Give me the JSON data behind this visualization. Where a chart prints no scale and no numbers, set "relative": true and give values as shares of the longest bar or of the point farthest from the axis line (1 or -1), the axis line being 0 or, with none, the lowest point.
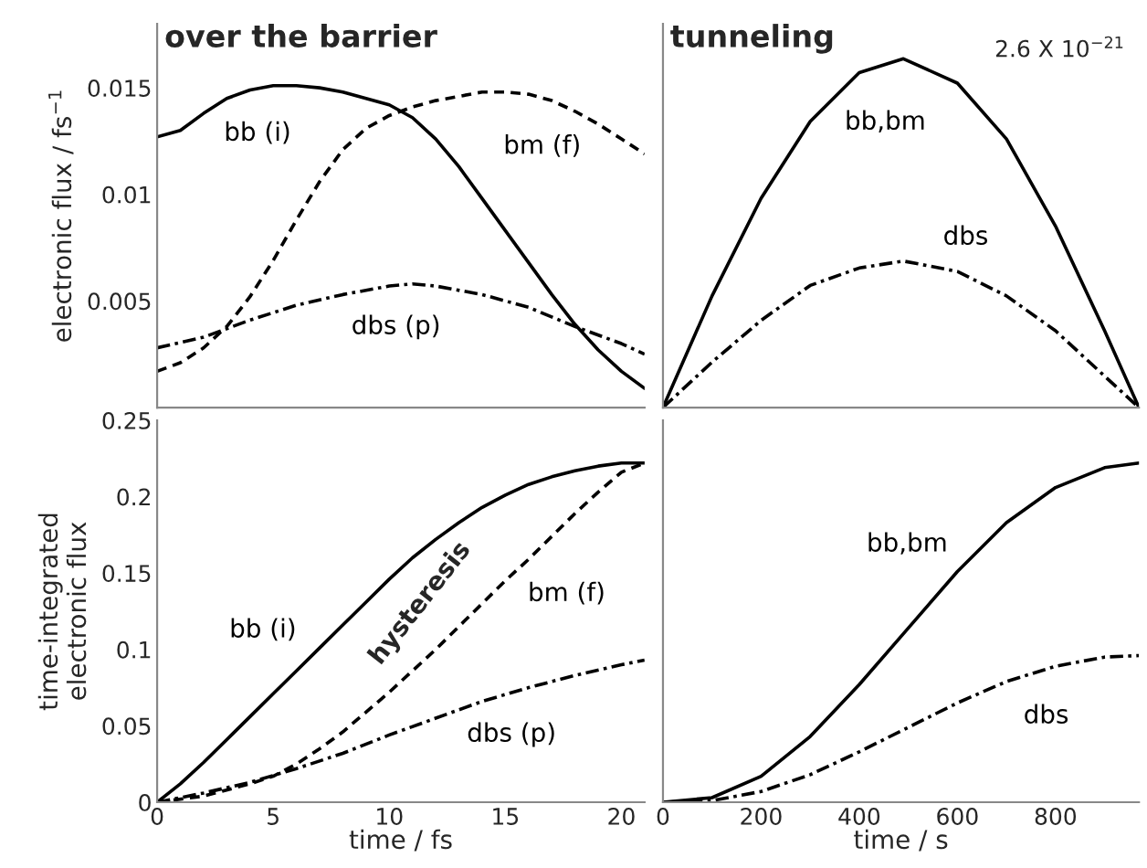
{
  "chart_data": [
    {
      "type": "line",
      "title": "over the barrier",
      "ylabel": "electronic flux / fs$^{−1}$",
      "xlim": [
        0,
        21
      ],
      "xticks": [
        5,
        10,
        15,
        20
      ],
      "ylim": [
        0,
        0.018
      ],
      "yticks": [
        0.005,
        0.01,
        0.015
      ],
      "tick_labels": "y",
      "grid": false,
      "legend": false,
      "series": [
        {
          "name": "bb (i)",
          "color": "#000000",
          "line_style": "solid",
          "x": [
            0,
            1,
            2,
            3,
            4,
            5,
            6,
            7,
            8,
            9,
            10,
            11,
            12,
            13,
            14,
            15,
            16,
            17,
            18,
            19,
            20,
            21
          ],
          "values": [
            0.0127,
            0.013,
            0.0138,
            0.0145,
            0.0149,
            0.0151,
            0.0151,
            0.015,
            0.0148,
            0.0145,
            0.0142,
            0.0136,
            0.0126,
            0.0113,
            0.0098,
            0.0083,
            0.0068,
            0.0053,
            0.0039,
            0.0027,
            0.0017,
            0.0009
          ]
        },
        {
          "name": "bm (f)",
          "color": "#000000",
          "line_style": "dashed",
          "x": [
            0,
            1,
            2,
            3,
            4,
            5,
            6,
            7,
            8,
            9,
            10,
            11,
            12,
            13,
            14,
            15,
            16,
            17,
            18,
            19,
            20,
            21
          ],
          "values": [
            0.0017,
            0.0021,
            0.0028,
            0.0038,
            0.0052,
            0.0069,
            0.0088,
            0.0106,
            0.0121,
            0.0131,
            0.0137,
            0.0141,
            0.0144,
            0.0146,
            0.0148,
            0.0148,
            0.0147,
            0.0144,
            0.0139,
            0.0133,
            0.0126,
            0.0119
          ]
        },
        {
          "name": "dbs (p)",
          "color": "#000000",
          "line_style": "dashdot",
          "x": [
            0,
            2,
            4,
            6,
            8,
            10,
            11,
            12,
            14,
            16,
            18,
            20,
            21
          ],
          "values": [
            0.0028,
            0.0033,
            0.0041,
            0.0048,
            0.0053,
            0.0057,
            0.0058,
            0.0057,
            0.0053,
            0.0047,
            0.0038,
            0.003,
            0.0025
          ]
        }
      ]
    },
    {
      "type": "line",
      "title": "tunneling",
      "relative": true,
      "xlim": [
        0,
        970
      ],
      "xticks": [
        200,
        400,
        600,
        800
      ],
      "tick_labels": false,
      "grid": false,
      "legend": false,
      "series": [
        {
          "name": "bb,bm",
          "color": "#000000",
          "line_style": "solid",
          "x": [
            0,
            100,
            200,
            300,
            400,
            490,
            600,
            700,
            800,
            900,
            970
          ],
          "values": [
            0,
            0.32,
            0.6,
            0.82,
            0.96,
            1,
            0.93,
            0.77,
            0.52,
            0.22,
            0
          ]
        },
        {
          "name": "dbs",
          "color": "#000000",
          "line_style": "dashdot",
          "x": [
            0,
            100,
            200,
            300,
            400,
            490,
            600,
            700,
            800,
            900,
            970
          ],
          "values": [
            0,
            0.13,
            0.25,
            0.35,
            0.4,
            0.42,
            0.39,
            0.32,
            0.22,
            0.09,
            0
          ]
        }
      ],
      "annotations": [
        "2.6 X 10$^{−21}$"
      ]
    },
    {
      "type": "line",
      "xlabel": "time / fs",
      "ylabel": "time-integrated\nelectronic flux",
      "xlim": [
        0,
        21
      ],
      "xticks": [
        0,
        5,
        10,
        15,
        20
      ],
      "ylim": [
        0,
        0.25
      ],
      "yticks": [
        0,
        0.05,
        0.1,
        0.15,
        0.2,
        0.25
      ],
      "grid": false,
      "legend": false,
      "series": [
        {
          "name": "bb (i)",
          "color": "#000000",
          "line_style": "solid",
          "x": [
            0,
            1,
            2,
            3,
            4,
            5,
            6,
            7,
            8,
            9,
            10,
            11,
            12,
            13,
            14,
            15,
            16,
            17,
            18,
            19,
            20,
            21
          ],
          "values": [
            0,
            0.012,
            0.026,
            0.041,
            0.056,
            0.071,
            0.086,
            0.101,
            0.116,
            0.131,
            0.146,
            0.16,
            0.172,
            0.183,
            0.193,
            0.201,
            0.208,
            0.213,
            0.217,
            0.22,
            0.222,
            0.222
          ]
        },
        {
          "name": "bm (f)",
          "color": "#000000",
          "line_style": "dashed",
          "x": [
            0,
            2,
            4,
            5,
            6,
            7,
            8,
            9,
            10,
            11,
            12,
            13,
            14,
            15,
            16,
            17,
            18,
            19,
            20,
            21
          ],
          "values": [
            0,
            0.004,
            0.012,
            0.017,
            0.025,
            0.035,
            0.046,
            0.059,
            0.072,
            0.086,
            0.1,
            0.115,
            0.13,
            0.145,
            0.159,
            0.174,
            0.189,
            0.203,
            0.216,
            0.222
          ]
        },
        {
          "name": "dbs (p)",
          "color": "#000000",
          "line_style": "dashdot",
          "x": [
            0,
            2,
            4,
            6,
            8,
            10,
            12,
            14,
            16,
            18,
            20,
            21
          ],
          "values": [
            0,
            0.006,
            0.013,
            0.022,
            0.032,
            0.044,
            0.055,
            0.066,
            0.075,
            0.083,
            0.09,
            0.093
          ]
        }
      ],
      "annotations": [
        "hysteresis"
      ]
    },
    {
      "type": "line",
      "xlabel": "time / s",
      "xlim": [
        0,
        970
      ],
      "xticks": [
        0,
        200,
        400,
        600,
        800
      ],
      "ylim": [
        0,
        0.25
      ],
      "yticks": [
        0.05,
        0.1,
        0.15,
        0.2
      ],
      "tick_labels": "x",
      "grid": false,
      "legend": false,
      "series": [
        {
          "name": "bb,bm",
          "color": "#000000",
          "line_style": "solid",
          "x": [
            0,
            100,
            200,
            300,
            400,
            500,
            600,
            700,
            800,
            900,
            970
          ],
          "values": [
            0,
            0.003,
            0.017,
            0.043,
            0.077,
            0.114,
            0.151,
            0.183,
            0.206,
            0.219,
            0.222
          ]
        },
        {
          "name": "dbs",
          "color": "#000000",
          "line_style": "dashdot",
          "x": [
            0,
            100,
            200,
            300,
            400,
            500,
            600,
            700,
            800,
            900,
            970
          ],
          "values": [
            0,
            0.001,
            0.007,
            0.018,
            0.033,
            0.049,
            0.065,
            0.079,
            0.089,
            0.095,
            0.096
          ]
        }
      ]
    }
  ]
}
